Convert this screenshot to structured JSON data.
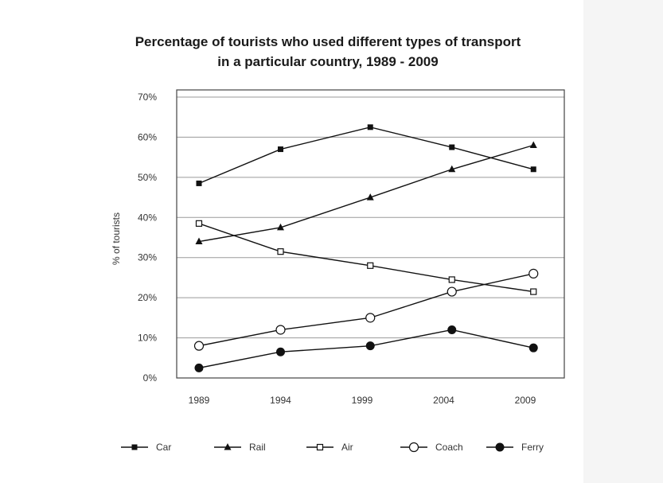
{
  "chart_data": {
    "type": "line",
    "title": "Percentage of tourists who used different types of transport",
    "subtitle": "in a particular country, 1989 - 2009",
    "xlabel": "",
    "ylabel": "% of tourists",
    "categories": [
      "1989",
      "1994",
      "1999",
      "2004",
      "2009"
    ],
    "x": [
      1989,
      1994,
      1999,
      2004,
      2009
    ],
    "ylim": [
      0,
      70
    ],
    "yticks": [
      0,
      10,
      20,
      30,
      40,
      50,
      60,
      70
    ],
    "ytick_labels": [
      "0%",
      "10%",
      "20%",
      "30%",
      "40%",
      "50%",
      "60%",
      "70%"
    ],
    "grid": "horizontal",
    "legend_position": "bottom",
    "series": [
      {
        "name": "Car",
        "marker": "filled-square",
        "x": [
          1989,
          1994,
          1999.5,
          2004.5,
          2009.5
        ],
        "values": [
          48.5,
          57,
          62.5,
          57.5,
          52
        ]
      },
      {
        "name": "Rail",
        "marker": "filled-triangle",
        "x": [
          1989,
          1994,
          1999.5,
          2004.5,
          2009.5
        ],
        "values": [
          34,
          37.5,
          45,
          52,
          58
        ]
      },
      {
        "name": "Air",
        "marker": "open-square",
        "x": [
          1989,
          1994,
          1999.5,
          2004.5,
          2009.5
        ],
        "values": [
          38.5,
          31.5,
          28,
          24.5,
          21.5
        ]
      },
      {
        "name": "Coach",
        "marker": "open-circle",
        "x": [
          1989,
          1994,
          1999.5,
          2004.5,
          2009.5
        ],
        "values": [
          8,
          12,
          15,
          21.5,
          26
        ]
      },
      {
        "name": "Ferry",
        "marker": "filled-circle",
        "x": [
          1989,
          1994,
          1999.5,
          2004.5,
          2009.5
        ],
        "values": [
          2.5,
          6.5,
          8,
          12,
          7.5
        ]
      }
    ]
  }
}
